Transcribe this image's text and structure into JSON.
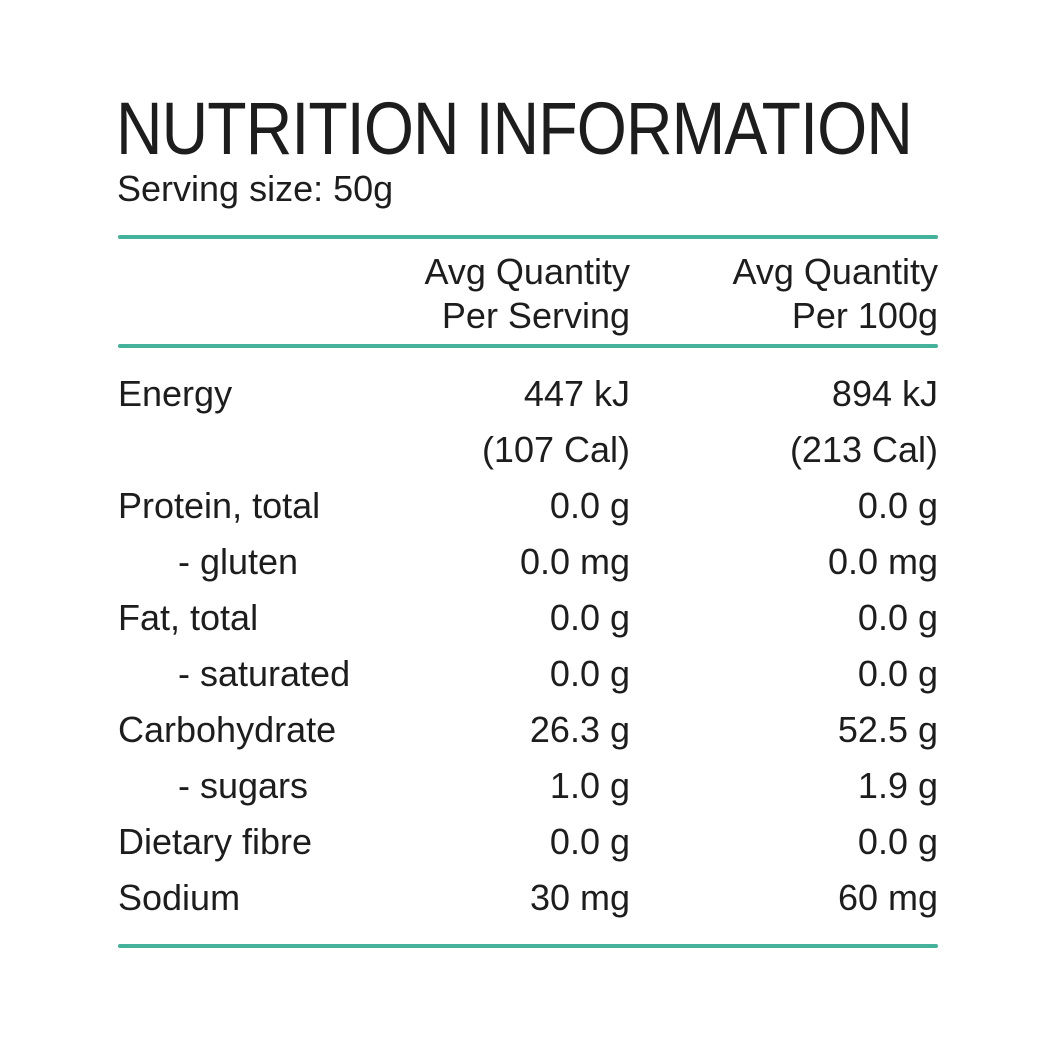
{
  "page": {
    "title": "NUTRITION INFORMATION",
    "serving_size": "Serving size: 50g"
  },
  "table": {
    "col_serving": {
      "line1": "Avg Quantity",
      "line2": "Per Serving"
    },
    "col_100g": {
      "line1": "Avg Quantity",
      "line2": "Per 100g"
    },
    "rows": [
      {
        "name": "Energy",
        "indent": false,
        "per_serving": "447 kJ",
        "per_100g": "894 kJ"
      },
      {
        "name": "",
        "indent": false,
        "per_serving": "(107 Cal)",
        "per_100g": "(213 Cal)"
      },
      {
        "name": "Protein, total",
        "indent": false,
        "per_serving": "0.0 g",
        "per_100g": "0.0 g"
      },
      {
        "name": "- gluten",
        "indent": true,
        "per_serving": "0.0 mg",
        "per_100g": "0.0 mg"
      },
      {
        "name": "Fat, total",
        "indent": false,
        "per_serving": "0.0 g",
        "per_100g": "0.0 g"
      },
      {
        "name": "- saturated",
        "indent": true,
        "per_serving": "0.0 g",
        "per_100g": "0.0 g"
      },
      {
        "name": "Carbohydrate",
        "indent": false,
        "per_serving": "26.3 g",
        "per_100g": "52.5 g"
      },
      {
        "name": "- sugars",
        "indent": true,
        "per_serving": "1.0 g",
        "per_100g": "1.9 g"
      },
      {
        "name": "Dietary fibre",
        "indent": false,
        "per_serving": "0.0 g",
        "per_100g": "0.0 g"
      },
      {
        "name": "Sodium",
        "indent": false,
        "per_serving": "30 mg",
        "per_100g": "60 mg"
      }
    ]
  },
  "colors": {
    "rule": "#45b29b",
    "text": "#1d1d1d"
  }
}
